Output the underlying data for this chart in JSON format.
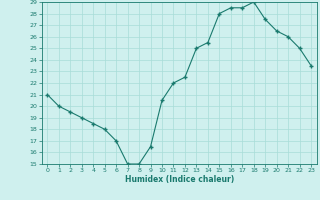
{
  "x": [
    0,
    1,
    2,
    3,
    4,
    5,
    6,
    7,
    8,
    9,
    10,
    11,
    12,
    13,
    14,
    15,
    16,
    17,
    18,
    19,
    20,
    21,
    22,
    23
  ],
  "y": [
    21,
    20,
    19.5,
    19,
    18.5,
    18,
    17,
    15,
    15,
    16.5,
    20.5,
    22,
    22.5,
    25,
    25.5,
    28,
    28.5,
    28.5,
    29,
    27.5,
    26.5,
    26,
    25,
    23.5
  ],
  "xlabel": "Humidex (Indice chaleur)",
  "ylabel": "",
  "xlim": [
    -0.5,
    23.5
  ],
  "ylim": [
    15,
    29
  ],
  "yticks": [
    15,
    16,
    17,
    18,
    19,
    20,
    21,
    22,
    23,
    24,
    25,
    26,
    27,
    28,
    29
  ],
  "xticks": [
    0,
    1,
    2,
    3,
    4,
    5,
    6,
    7,
    8,
    9,
    10,
    11,
    12,
    13,
    14,
    15,
    16,
    17,
    18,
    19,
    20,
    21,
    22,
    23
  ],
  "line_color": "#1a7a6e",
  "marker": "+",
  "bg_color": "#cff0ee",
  "grid_color": "#a8ddd8",
  "axis_color": "#1a7a6e",
  "tick_color": "#1a7a6e",
  "label_color": "#1a7a6e"
}
